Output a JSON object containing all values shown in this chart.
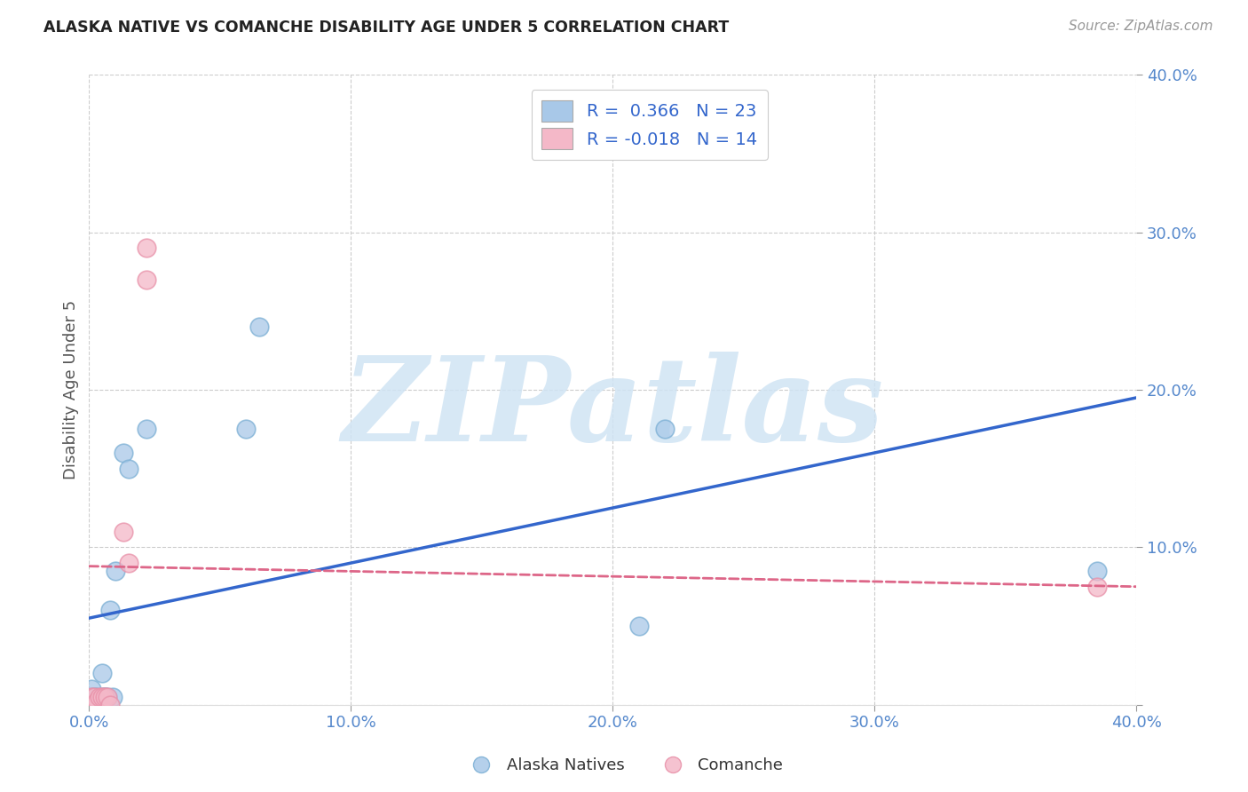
{
  "title": "ALASKA NATIVE VS COMANCHE DISABILITY AGE UNDER 5 CORRELATION CHART",
  "source": "Source: ZipAtlas.com",
  "ylabel": "Disability Age Under 5",
  "xlim": [
    0.0,
    0.4
  ],
  "ylim": [
    0.0,
    0.4
  ],
  "alaska_color": "#a8c8e8",
  "alaska_edge_color": "#7bafd4",
  "comanche_color": "#f4b8c8",
  "comanche_edge_color": "#e890a8",
  "alaska_line_color": "#3366cc",
  "comanche_line_color": "#dd6688",
  "background_color": "#ffffff",
  "grid_color": "#cccccc",
  "tick_color": "#5588cc",
  "watermark": "ZIPatlas",
  "watermark_color": "#d0e4f4",
  "legend_R_alaska": "R =  0.366",
  "legend_N_alaska": "N = 23",
  "legend_R_comanche": "R = -0.018",
  "legend_N_comanche": "N = 14",
  "alaska_points_x": [
    0.001,
    0.001,
    0.002,
    0.003,
    0.003,
    0.004,
    0.004,
    0.005,
    0.005,
    0.006,
    0.006,
    0.007,
    0.008,
    0.009,
    0.01,
    0.013,
    0.015,
    0.022,
    0.06,
    0.065,
    0.21,
    0.22,
    0.385
  ],
  "alaska_points_y": [
    0.005,
    0.01,
    0.005,
    0.002,
    0.005,
    0.0,
    0.002,
    0.005,
    0.02,
    0.005,
    0.005,
    0.005,
    0.06,
    0.005,
    0.085,
    0.16,
    0.15,
    0.175,
    0.175,
    0.24,
    0.05,
    0.175,
    0.085
  ],
  "comanche_points_x": [
    0.001,
    0.001,
    0.002,
    0.003,
    0.004,
    0.005,
    0.006,
    0.007,
    0.008,
    0.013,
    0.015,
    0.022,
    0.022,
    0.385
  ],
  "comanche_points_y": [
    0.0,
    0.005,
    0.005,
    0.002,
    0.005,
    0.005,
    0.005,
    0.005,
    0.0,
    0.11,
    0.09,
    0.29,
    0.27,
    0.075
  ],
  "alaska_line_x0": 0.0,
  "alaska_line_y0": 0.055,
  "alaska_line_x1": 0.4,
  "alaska_line_y1": 0.195,
  "comanche_line_x0": 0.0,
  "comanche_line_y0": 0.088,
  "comanche_line_x1": 0.4,
  "comanche_line_y1": 0.075
}
